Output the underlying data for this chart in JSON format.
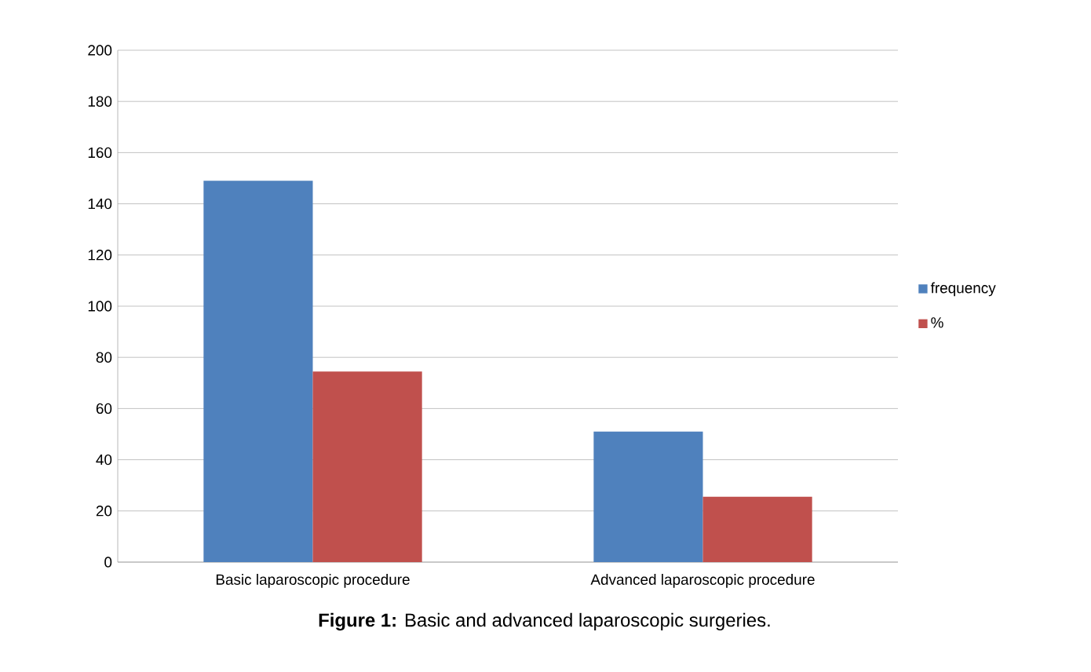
{
  "chart_data": {
    "type": "bar",
    "categories": [
      "Basic laparoscopic procedure",
      "Advanced laparoscopic procedure"
    ],
    "series": [
      {
        "name": "frequency",
        "color": "#4f81bd",
        "values": [
          149,
          51
        ]
      },
      {
        "name": "%",
        "color": "#c0504d",
        "values": [
          74.5,
          25.5
        ]
      }
    ],
    "ylim": [
      0,
      200
    ],
    "yticks": [
      0,
      20,
      40,
      60,
      80,
      100,
      120,
      140,
      160,
      180,
      200
    ],
    "grid": "y",
    "legend": "right",
    "annotations": [
      "**Figure 1:** Basic and advanced laparoscopic surgeries."
    ]
  }
}
